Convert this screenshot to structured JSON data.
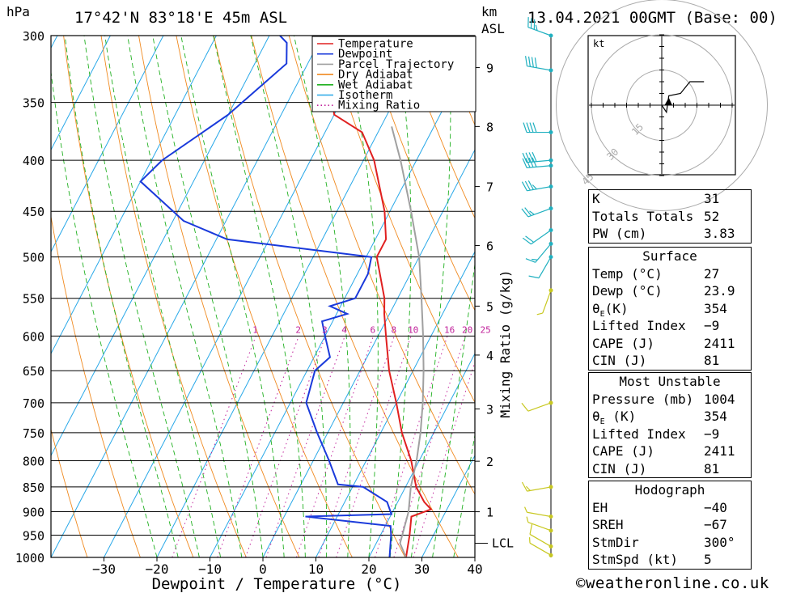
{
  "header": {
    "hpa_unit": "hPa",
    "location": "17°42'N  83°18'E  45m  ASL",
    "km_unit": "km",
    "asl_unit": "ASL",
    "datetime": "13.04.2021  00GMT  (Base: 00)"
  },
  "legend": [
    {
      "label": "Temperature",
      "color": "#e02020"
    },
    {
      "label": "Dewpoint",
      "color": "#1a3adb"
    },
    {
      "label": "Parcel Trajectory",
      "color": "#a0a0a0"
    },
    {
      "label": "Dry Adiabat",
      "color": "#f08a20"
    },
    {
      "label": "Wet Adiabat",
      "color": "#20b020"
    },
    {
      "label": "Isotherm",
      "color": "#28a8e8"
    },
    {
      "label": "Mixing Ratio",
      "color": "#c0209a"
    }
  ],
  "colors": {
    "temperature": "#e02020",
    "dewpoint": "#1a3adb",
    "parcel": "#a0a0a0",
    "dry_adiabat": "#f08a20",
    "wet_adiabat": "#20b020",
    "isotherm": "#28a8e8",
    "mixing_ratio": "#c0209a",
    "wind_barb": "#20b0c0",
    "wind_barb_low": "#c8c820"
  },
  "chart_data": {
    "type": "line",
    "xlabel": "Dewpoint / Temperature (°C)",
    "ylabel_right": "Mixing Ratio (g/kg)",
    "xlim": [
      -40,
      40
    ],
    "ylim_hpa": [
      1000,
      300
    ],
    "pressure_ticks": [
      300,
      350,
      400,
      450,
      500,
      550,
      600,
      650,
      700,
      750,
      800,
      850,
      900,
      950,
      1000
    ],
    "pressure_tick_labels": [
      "300",
      "350",
      "400",
      "450",
      "500",
      "550",
      "600",
      "650",
      "700",
      "750",
      "800",
      "850",
      "900",
      "950",
      "1000"
    ],
    "temperature_ticks": [
      "−30",
      "−20",
      "−10",
      "0",
      "10",
      "20",
      "30",
      "40"
    ],
    "temperature_tick_values": [
      -30,
      -20,
      -10,
      0,
      10,
      20,
      30,
      40
    ],
    "km_ticks": [
      {
        "label": "1",
        "hpa": 900
      },
      {
        "label": "2",
        "hpa": 801
      },
      {
        "label": "3",
        "hpa": 710
      },
      {
        "label": "4",
        "hpa": 627
      },
      {
        "label": "5",
        "hpa": 560
      },
      {
        "label": "6",
        "hpa": 487
      },
      {
        "label": "7",
        "hpa": 425
      },
      {
        "label": "8",
        "hpa": 370
      },
      {
        "label": "9",
        "hpa": 323
      }
    ],
    "lcl": {
      "label": "LCL",
      "hpa": 968
    },
    "mixing_ratio_labels": [
      {
        "label": "1",
        "value": 1
      },
      {
        "label": "2",
        "value": 2
      },
      {
        "label": "3",
        "value": 3
      },
      {
        "label": "4",
        "value": 4
      },
      {
        "label": "6",
        "value": 6
      },
      {
        "label": "8",
        "value": 8
      },
      {
        "label": "10",
        "value": 10
      },
      {
        "label": "16",
        "value": 16
      },
      {
        "label": "20",
        "value": 20
      },
      {
        "label": "25",
        "value": 25
      }
    ],
    "series": [
      {
        "name": "Temperature",
        "points": [
          [
            1000,
            27
          ],
          [
            950,
            25.5
          ],
          [
            910,
            24
          ],
          [
            895,
            27
          ],
          [
            880,
            25
          ],
          [
            850,
            22
          ],
          [
            800,
            18.5
          ],
          [
            750,
            14
          ],
          [
            700,
            10
          ],
          [
            650,
            5.5
          ],
          [
            600,
            1.5
          ],
          [
            570,
            -1
          ],
          [
            550,
            -2.5
          ],
          [
            500,
            -8
          ],
          [
            480,
            -8
          ],
          [
            450,
            -11
          ],
          [
            400,
            -18
          ],
          [
            375,
            -23
          ],
          [
            360,
            -30
          ],
          [
            320,
            -36
          ],
          [
            300,
            -40
          ]
        ]
      },
      {
        "name": "Dewpoint",
        "points": [
          [
            1000,
            23.9
          ],
          [
            950,
            22
          ],
          [
            930,
            21
          ],
          [
            910,
            4
          ],
          [
            905,
            20
          ],
          [
            880,
            18
          ],
          [
            850,
            12
          ],
          [
            845,
            7
          ],
          [
            800,
            3
          ],
          [
            750,
            -2
          ],
          [
            700,
            -7
          ],
          [
            650,
            -8.5
          ],
          [
            630,
            -7
          ],
          [
            600,
            -10
          ],
          [
            580,
            -12
          ],
          [
            570,
            -8
          ],
          [
            560,
            -12
          ],
          [
            550,
            -8
          ],
          [
            520,
            -8
          ],
          [
            500,
            -9
          ],
          [
            480,
            -38
          ],
          [
            460,
            -48
          ],
          [
            420,
            -60
          ],
          [
            400,
            -58
          ],
          [
            360,
            -50
          ],
          [
            320,
            -44
          ],
          [
            305,
            -46
          ],
          [
            300,
            -48
          ]
        ]
      },
      {
        "name": "Parcel Trajectory",
        "points": [
          [
            1000,
            27
          ],
          [
            968,
            24.5
          ],
          [
            900,
            23
          ],
          [
            850,
            21
          ],
          [
            800,
            19.5
          ],
          [
            750,
            17.5
          ],
          [
            700,
            15
          ],
          [
            650,
            12
          ],
          [
            600,
            8.5
          ],
          [
            550,
            4.5
          ],
          [
            500,
            0
          ],
          [
            450,
            -6
          ],
          [
            400,
            -13
          ],
          [
            370,
            -18
          ]
        ]
      }
    ],
    "wind_barbs": [
      {
        "hpa": 300,
        "dir": 290,
        "kt": 35
      },
      {
        "hpa": 325,
        "dir": 280,
        "kt": 40
      },
      {
        "hpa": 375,
        "dir": 270,
        "kt": 40
      },
      {
        "hpa": 400,
        "dir": 265,
        "kt": 40
      },
      {
        "hpa": 405,
        "dir": 265,
        "kt": 40
      },
      {
        "hpa": 425,
        "dir": 260,
        "kt": 35
      },
      {
        "hpa": 447,
        "dir": 250,
        "kt": 25
      },
      {
        "hpa": 470,
        "dir": 235,
        "kt": 20
      },
      {
        "hpa": 485,
        "dir": 220,
        "kt": 15
      },
      {
        "hpa": 500,
        "dir": 210,
        "kt": 10
      },
      {
        "hpa": 540,
        "dir": 200,
        "kt": 5
      },
      {
        "hpa": 700,
        "dir": 250,
        "kt": 10
      },
      {
        "hpa": 850,
        "dir": 260,
        "kt": 15
      },
      {
        "hpa": 910,
        "dir": 280,
        "kt": 5
      },
      {
        "hpa": 940,
        "dir": 290,
        "kt": 5
      },
      {
        "hpa": 975,
        "dir": 300,
        "kt": 10
      },
      {
        "hpa": 995,
        "dir": 300,
        "kt": 5
      }
    ]
  },
  "hodograph": {
    "unit_label": "kt",
    "rings": [
      {
        "label": "15",
        "kt": 15
      },
      {
        "label": "30",
        "kt": 30
      },
      {
        "label": "45",
        "kt": 45
      }
    ],
    "trace_kt": [
      [
        0,
        0
      ],
      [
        2,
        -3
      ],
      [
        3,
        4
      ],
      [
        8,
        5
      ],
      [
        12,
        10
      ],
      [
        18,
        10
      ]
    ],
    "storm_motion_kt": [
      3,
      1.5
    ]
  },
  "indices": {
    "k_label": "K",
    "k_value": "31",
    "tt_label": "Totals Totals",
    "tt_value": "52",
    "pw_label": "PW (cm)",
    "pw_value": "3.83"
  },
  "surface": {
    "heading": "Surface",
    "temp_label": "Temp (°C)",
    "temp_value": "27",
    "dewp_label": "Dewp (°C)",
    "dewp_value": "23.9",
    "theta_label_main": "θ",
    "theta_label_sub": "E",
    "theta_label_tail": "(K)",
    "theta_value": "354",
    "li_label": "Lifted Index",
    "li_value": "−9",
    "cape_label": "CAPE (J)",
    "cape_value": "2411",
    "cin_label": "CIN (J)",
    "cin_value": "81"
  },
  "most_unstable": {
    "heading": "Most Unstable",
    "pressure_label": "Pressure (mb)",
    "pressure_value": "1004",
    "theta_label_main": "θ",
    "theta_label_sub": "E",
    "theta_label_tail": " (K)",
    "theta_value": "354",
    "li_label": "Lifted Index",
    "li_value": "−9",
    "cape_label": "CAPE (J)",
    "cape_value": "2411",
    "cin_label": "CIN (J)",
    "cin_value": "81"
  },
  "hodograph_table": {
    "heading": "Hodograph",
    "eh_label": "EH",
    "eh_value": "−40",
    "sreh_label": "SREH",
    "sreh_value": "−67",
    "stmdir_label": "StmDir",
    "stmdir_value": "300°",
    "stmspd_label": "StmSpd (kt)",
    "stmspd_value": "5"
  },
  "footer": {
    "credit": "©weatheronline.co.uk"
  }
}
